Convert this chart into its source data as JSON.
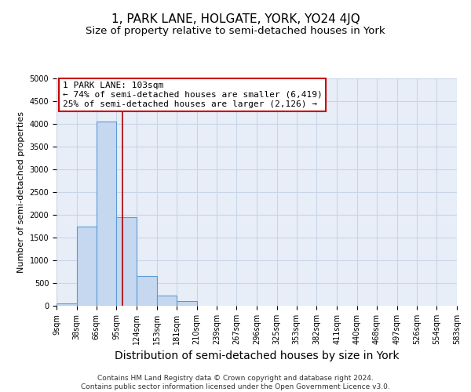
{
  "title": "1, PARK LANE, HOLGATE, YORK, YO24 4JQ",
  "subtitle": "Size of property relative to semi-detached houses in York",
  "xlabel": "Distribution of semi-detached houses by size in York",
  "ylabel": "Number of semi-detached properties",
  "bin_edges": [
    9,
    38,
    66,
    95,
    124,
    153,
    181,
    210,
    239,
    267,
    296,
    325,
    353,
    382,
    411,
    440,
    468,
    497,
    526,
    554,
    583
  ],
  "bar_heights": [
    50,
    1750,
    4050,
    1950,
    650,
    230,
    100,
    0,
    0,
    0,
    0,
    0,
    0,
    0,
    0,
    0,
    0,
    0,
    0,
    0
  ],
  "bar_color": "#c5d8f0",
  "bar_edgecolor": "#5b9bd5",
  "property_size": 103,
  "annotation_line1": "1 PARK LANE: 103sqm",
  "annotation_line2": "← 74% of semi-detached houses are smaller (6,419)",
  "annotation_line3": "25% of semi-detached houses are larger (2,126) →",
  "annotation_box_color": "#ffffff",
  "annotation_box_edgecolor": "#cc0000",
  "vline_color": "#aa0000",
  "ylim": [
    0,
    5000
  ],
  "yticks": [
    0,
    500,
    1000,
    1500,
    2000,
    2500,
    3000,
    3500,
    4000,
    4500,
    5000
  ],
  "grid_color": "#c8d4e8",
  "bg_color": "#e8eef8",
  "footer": "Contains HM Land Registry data © Crown copyright and database right 2024.\nContains public sector information licensed under the Open Government Licence v3.0.",
  "title_fontsize": 11,
  "subtitle_fontsize": 9.5,
  "xlabel_fontsize": 10,
  "ylabel_fontsize": 8,
  "tick_fontsize": 7,
  "footer_fontsize": 6.5,
  "annot_fontsize": 8
}
